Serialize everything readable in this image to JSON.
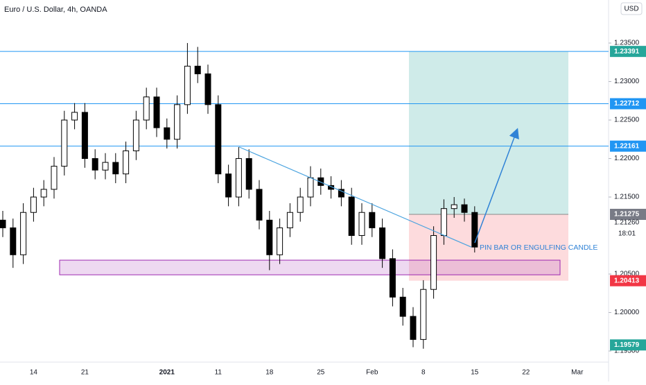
{
  "chart_data": {
    "type": "candlestick",
    "title": "Euro / U.S. Dollar, 4h, OANDA",
    "currency": "USD",
    "ylim": [
      1.19356,
      1.24059
    ],
    "yticks": [
      {
        "value": 1.235,
        "label": "1.23500"
      },
      {
        "value": 1.23,
        "label": "1.23000"
      },
      {
        "value": 1.225,
        "label": "1.22500"
      },
      {
        "value": 1.22,
        "label": "1.22000"
      },
      {
        "value": 1.215,
        "label": "1.21500"
      },
      {
        "value": 1.205,
        "label": "1.20500"
      },
      {
        "value": 1.2,
        "label": "1.20000"
      },
      {
        "value": 1.195,
        "label": "1.19500"
      }
    ],
    "x_labels": [
      "14",
      "21",
      "2021",
      "11",
      "18",
      "25",
      "Feb",
      "8",
      "15",
      "22",
      "Mar"
    ],
    "open": [
      1.212,
      1.211,
      1.2075,
      1.213,
      1.215,
      1.216,
      1.219,
      1.225,
      1.226,
      1.22,
      1.2185,
      1.2195,
      1.218,
      1.221,
      1.225,
      1.228,
      1.224,
      1.2225,
      1.227,
      1.232,
      1.231,
      1.227,
      1.218,
      1.215,
      1.22,
      1.216,
      1.212,
      1.2075,
      1.211,
      1.213,
      1.215,
      1.2175,
      1.2165,
      1.216,
      1.215,
      1.21,
      1.213,
      1.211,
      1.207,
      1.202,
      1.1995,
      1.1965,
      1.203,
      1.21,
      1.2135,
      1.214,
      1.213
    ],
    "high": [
      1.2132,
      1.2122,
      1.2142,
      1.2162,
      1.2172,
      1.2202,
      1.2262,
      1.2272,
      1.2272,
      1.2212,
      1.2207,
      1.2207,
      1.2222,
      1.2262,
      1.2292,
      1.2292,
      1.2252,
      1.2282,
      1.235,
      1.2345,
      1.2322,
      1.2282,
      1.2192,
      1.2215,
      1.2212,
      1.2172,
      1.2132,
      1.2122,
      1.2142,
      1.2162,
      1.219,
      1.2187,
      1.2177,
      1.2172,
      1.2162,
      1.2142,
      1.2142,
      1.2122,
      1.2082,
      1.2032,
      1.2007,
      1.2042,
      1.2112,
      1.2147,
      1.215,
      1.2148,
      1.2138
    ],
    "low": [
      1.2098,
      1.2058,
      1.2063,
      1.2118,
      1.2138,
      1.2148,
      1.2178,
      1.2238,
      1.2188,
      1.2173,
      1.2173,
      1.2168,
      1.2168,
      1.2198,
      1.2238,
      1.2228,
      1.2213,
      1.2213,
      1.2258,
      1.2298,
      1.2258,
      1.2168,
      1.2138,
      1.2138,
      1.2148,
      1.2108,
      1.2055,
      1.2063,
      1.2098,
      1.2118,
      1.2138,
      1.2153,
      1.2148,
      1.2138,
      1.2088,
      1.2088,
      1.2098,
      1.2058,
      1.2008,
      1.1983,
      1.1955,
      1.1953,
      1.2018,
      1.2088,
      1.2123,
      1.2118,
      1.2078
    ],
    "close": [
      1.211,
      1.2075,
      1.213,
      1.215,
      1.216,
      1.219,
      1.225,
      1.226,
      1.22,
      1.2185,
      1.2195,
      1.218,
      1.221,
      1.225,
      1.228,
      1.224,
      1.2225,
      1.227,
      1.232,
      1.231,
      1.227,
      1.218,
      1.215,
      1.22,
      1.216,
      1.212,
      1.2075,
      1.211,
      1.213,
      1.215,
      1.2175,
      1.2165,
      1.216,
      1.215,
      1.21,
      1.213,
      1.211,
      1.207,
      1.202,
      1.1995,
      1.1965,
      1.203,
      1.21,
      1.2135,
      1.214,
      1.213,
      1.2085
    ],
    "levels": [
      1.23391,
      1.22712,
      1.22161
    ],
    "position": {
      "target": 1.23391,
      "entry": 1.21275,
      "stop": 1.20413
    },
    "zone": [
      1.2068,
      1.2049
    ],
    "trendline": [
      1.2215,
      1.2085
    ],
    "last_price": {
      "value": 1.2126,
      "label": "1.21260"
    },
    "countdown": "18:01",
    "low_badge": 1.19579,
    "annotation": "PIN BAR OR ENGULFING CANDLE"
  }
}
